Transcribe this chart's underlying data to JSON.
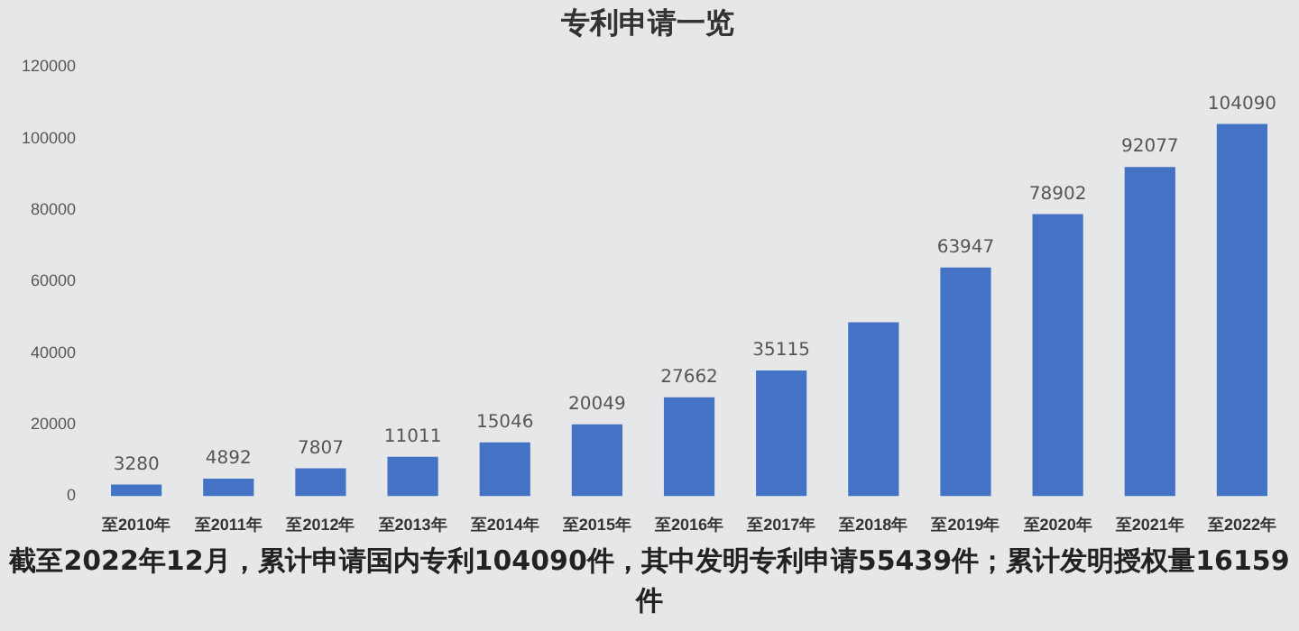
{
  "chart_data": {
    "type": "bar",
    "title": "专利申请一览",
    "categories": [
      "至2010年",
      "至2011年",
      "至2012年",
      "至2013年",
      "至2014年",
      "至2015年",
      "至2016年",
      "至2017年",
      "至2018年",
      "至2019年",
      "至2020年",
      "至2021年",
      "至2022年"
    ],
    "values": [
      3280,
      4892,
      7807,
      11011,
      15046,
      20049,
      27662,
      35115,
      48600,
      63947,
      78902,
      92077,
      104090
    ],
    "value_labels": [
      "3280",
      "4892",
      "7807",
      "11011",
      "15046",
      "20049",
      "27662",
      "35115",
      null,
      "63947",
      "78902",
      "92077",
      "104090"
    ],
    "color": "#4472c4",
    "ylim": [
      0,
      120000
    ],
    "yticks": [
      0,
      20000,
      40000,
      60000,
      80000,
      100000,
      120000
    ],
    "grid": false,
    "annotations": [
      "截至2022年12月，累计申请国内专利104090件，其中发明专利申请55439件；累计发明授权量16159件"
    ]
  }
}
